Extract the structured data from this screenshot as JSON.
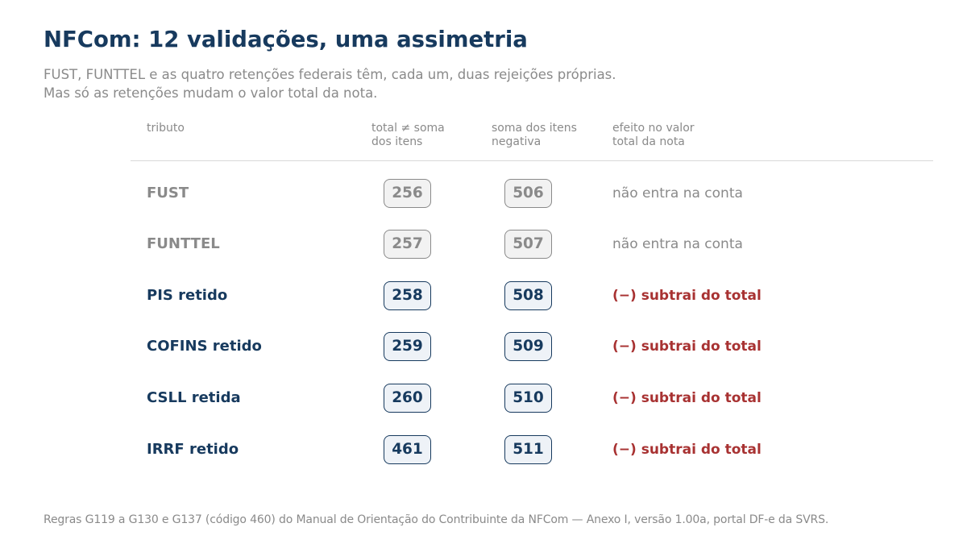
{
  "title": "NFCom: 12 validações, uma assimetria",
  "subtitle": {
    "line1": "FUST, FUNTTEL e as quatro retenções federais têm, cada um, duas rejeições próprias.",
    "line2": "Mas só as retenções mudam o valor total da nota."
  },
  "columns": {
    "tributo": {
      "line1": "tributo",
      "line2": ""
    },
    "total_diff": {
      "line1": "total ≠ soma",
      "line2": "dos itens"
    },
    "negative": {
      "line1": "soma dos itens",
      "line2": "negativa"
    },
    "effect": {
      "line1": "efeito no valor",
      "line2": "total da nota"
    }
  },
  "rows": [
    {
      "tributo": "FUST",
      "code_total": "256",
      "code_negative": "506",
      "effect": "não entra na conta",
      "affects_total": false
    },
    {
      "tributo": "FUNTTEL",
      "code_total": "257",
      "code_negative": "507",
      "effect": "não entra na conta",
      "affects_total": false
    },
    {
      "tributo": "PIS retido",
      "code_total": "258",
      "code_negative": "508",
      "effect": "(−)  subtrai do total",
      "affects_total": true
    },
    {
      "tributo": "COFINS retido",
      "code_total": "259",
      "code_negative": "509",
      "effect": "(−)  subtrai do total",
      "affects_total": true
    },
    {
      "tributo": "CSLL retida",
      "code_total": "260",
      "code_negative": "510",
      "effect": "(−)  subtrai do total",
      "affects_total": true
    },
    {
      "tributo": "IRRF retido",
      "code_total": "461",
      "code_negative": "511",
      "effect": "(−)  subtrai do total",
      "affects_total": true
    }
  ],
  "footnote": "Regras G119 a G130 e G137 (código 460) do Manual de Orientação do Contribuinte da NFCom — Anexo I, versão 1.00a, portal DF-e da SVRS.",
  "colors": {
    "navy": "#173a5e",
    "gray": "#8a8a8a",
    "red": "#a83232",
    "rule": "#d8d8d8"
  }
}
